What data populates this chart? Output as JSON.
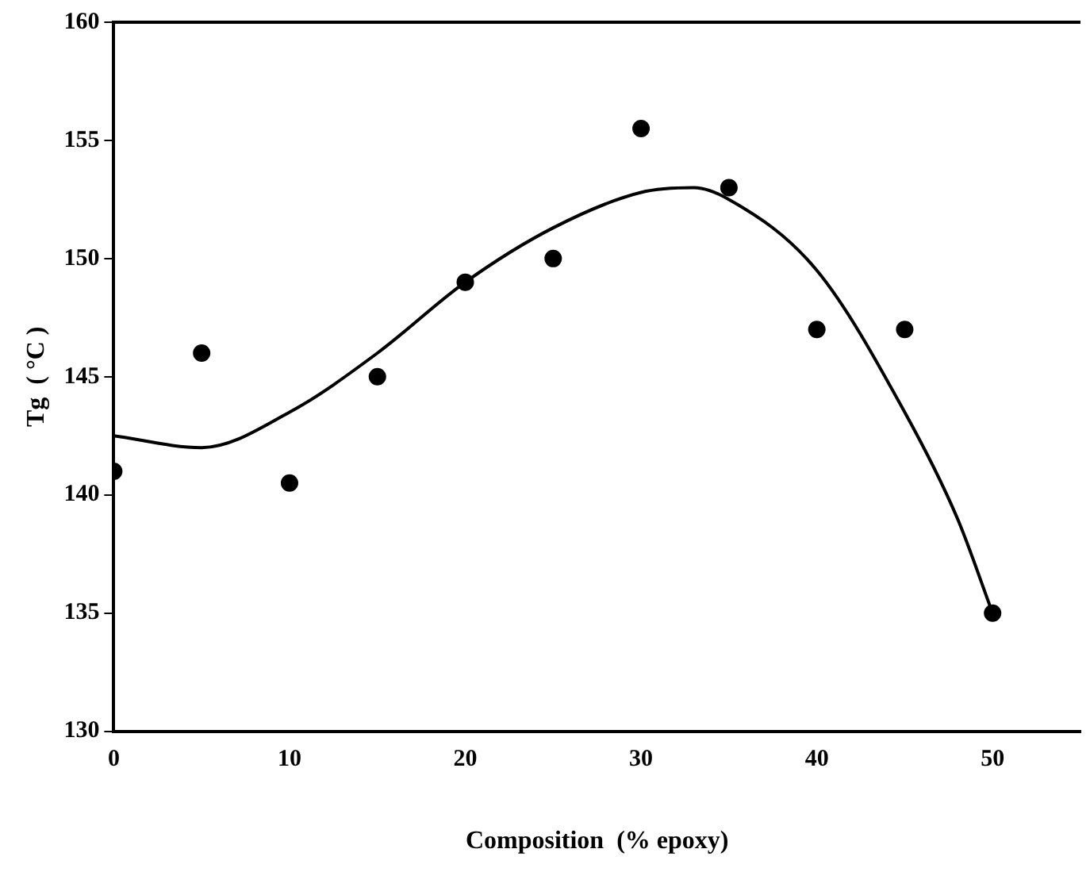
{
  "chart_data": {
    "type": "scatter",
    "xlabel": "Composition  (% epoxy)",
    "ylabel": "Tg  ( °C )",
    "xlim": [
      0,
      55
    ],
    "xticks": [
      0,
      10,
      20,
      30,
      40,
      50
    ],
    "ylim": [
      130,
      160
    ],
    "yticks": [
      130,
      135,
      140,
      145,
      150,
      155,
      160
    ],
    "grid": false,
    "legend": false,
    "series": [
      {
        "type": "scatter",
        "marker": "circle",
        "color": "#000000",
        "x": [
          0,
          5,
          10,
          15,
          20,
          25,
          30,
          35,
          40,
          45,
          50
        ],
        "values": [
          141,
          146,
          140.5,
          145,
          149,
          150,
          155.5,
          153,
          147,
          147,
          135
        ]
      },
      {
        "type": "line",
        "marker": "none",
        "color": "#000000",
        "x": [
          0,
          5,
          10,
          15,
          20,
          25,
          30,
          33,
          35,
          40,
          45,
          48,
          50
        ],
        "values": [
          142.5,
          142,
          143.5,
          146,
          149,
          151.3,
          152.8,
          153,
          152.5,
          149.5,
          143.5,
          139,
          135
        ]
      }
    ]
  }
}
